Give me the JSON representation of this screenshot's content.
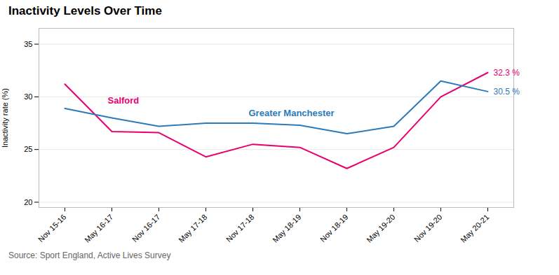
{
  "chart_data": {
    "type": "line",
    "title": "Inactivity Levels Over Time",
    "y_label": "Inactivity rate (%)",
    "caption": "Source: Sport England, Active Lives Survey",
    "categories": [
      "Nov 15-16",
      "May 16-17",
      "Nov 16-17",
      "May 17-18",
      "Nov 17-18",
      "May 18-19",
      "Nov 18-19",
      "May 19-20",
      "Nov 19-20",
      "May 20-21"
    ],
    "series": [
      {
        "name": "Salford",
        "color": "#e8006f",
        "values": [
          31.2,
          26.7,
          26.6,
          24.3,
          25.5,
          25.2,
          23.2,
          25.2,
          30.0,
          32.3
        ]
      },
      {
        "name": "Greater Manchester",
        "color": "#2b7bba",
        "values": [
          28.9,
          28.0,
          27.2,
          27.5,
          27.5,
          27.3,
          26.5,
          27.2,
          31.5,
          30.5
        ]
      }
    ],
    "annotations": [
      {
        "text": "32.3 %",
        "series": "Salford",
        "x": "May 20-21",
        "y": 32.3
      },
      {
        "text": "30.5 %",
        "series": "Greater Manchester",
        "x": "May 20-21",
        "y": 30.5
      }
    ],
    "ylim": [
      19.5,
      36.5
    ],
    "yticks": [
      20,
      25,
      30,
      35
    ],
    "grid": true
  }
}
